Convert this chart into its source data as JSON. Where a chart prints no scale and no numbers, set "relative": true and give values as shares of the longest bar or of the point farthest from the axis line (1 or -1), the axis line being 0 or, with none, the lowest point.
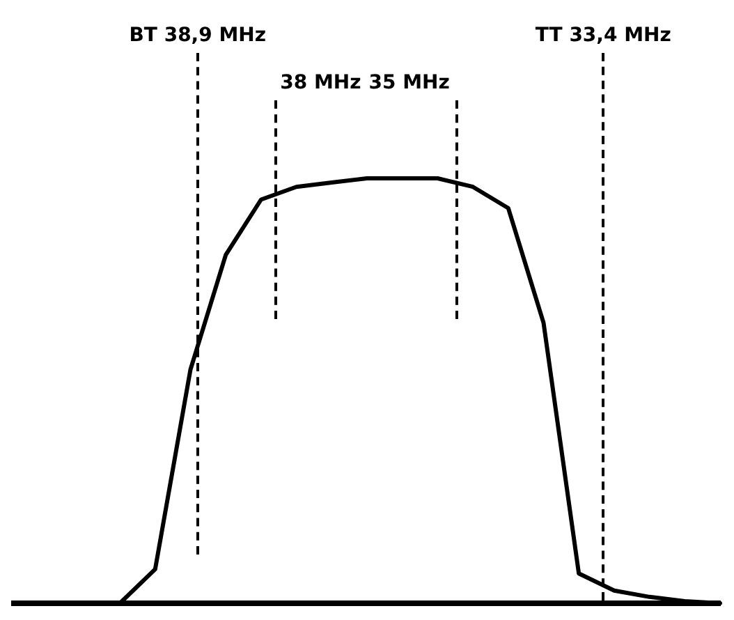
{
  "chart_data": {
    "type": "line",
    "relative": true,
    "legend": false,
    "marker": "none",
    "line_style": "solid",
    "categories": [
      null,
      null,
      null,
      null,
      null,
      null,
      null,
      null,
      null,
      null,
      null,
      null,
      null,
      null,
      null,
      null,
      null,
      null,
      null,
      null,
      null
    ],
    "series": [
      {
        "color": "#000000",
        "values": [
          0,
          0,
          0,
          0,
          0.08,
          0.55,
          0.82,
          0.95,
          0.98,
          0.99,
          1,
          1,
          1,
          0.98,
          0.93,
          0.66,
          0.07,
          0.03,
          0.015,
          0.005,
          0
        ]
      }
    ],
    "annotations": [
      "BT 38,9 MHz",
      "TT 33,4 MHz",
      "38 MHz",
      "35 MHz"
    ]
  }
}
